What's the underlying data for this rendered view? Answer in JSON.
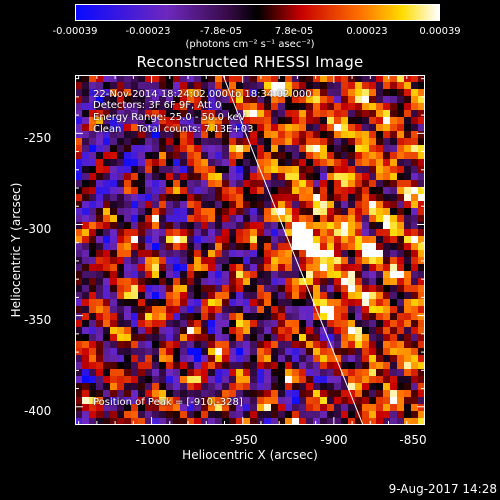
{
  "colorbar": {
    "ticks": [
      "-0.00039",
      "-0.00023",
      "-7.8e-05",
      "7.8e-05",
      "0.00023",
      "0.00039"
    ],
    "unit": "(photons cm⁻² s⁻¹ asec⁻²)"
  },
  "title": "Reconstructed RHESSI Image",
  "info": {
    "time": "22-Nov-2014 18:24:02.000 to 18:34:02.000",
    "detectors": "Detectors: 3F 6F 9F, Att 0",
    "energy": "Energy Range: 25.0 - 50.0 keV",
    "clean": "Clean     Total counts: 7.13E+03",
    "peak": "Position of Peak = [-910,-328]"
  },
  "axes": {
    "xlabel": "Heliocentric X (arcsec)",
    "ylabel": "Heliocentric Y (arcsec)",
    "xticks": [
      "-1000",
      "-950",
      "-900",
      "-850"
    ],
    "yticks": [
      "-250",
      "-300",
      "-350",
      "-400"
    ],
    "xlim": [
      -1042,
      -850
    ],
    "ylim": [
      -410,
      -218
    ]
  },
  "stamp": "9-Aug-2017 14:28",
  "colors": {
    "text": "#ffffff",
    "background": "#000000",
    "limb": "#ffffff"
  }
}
